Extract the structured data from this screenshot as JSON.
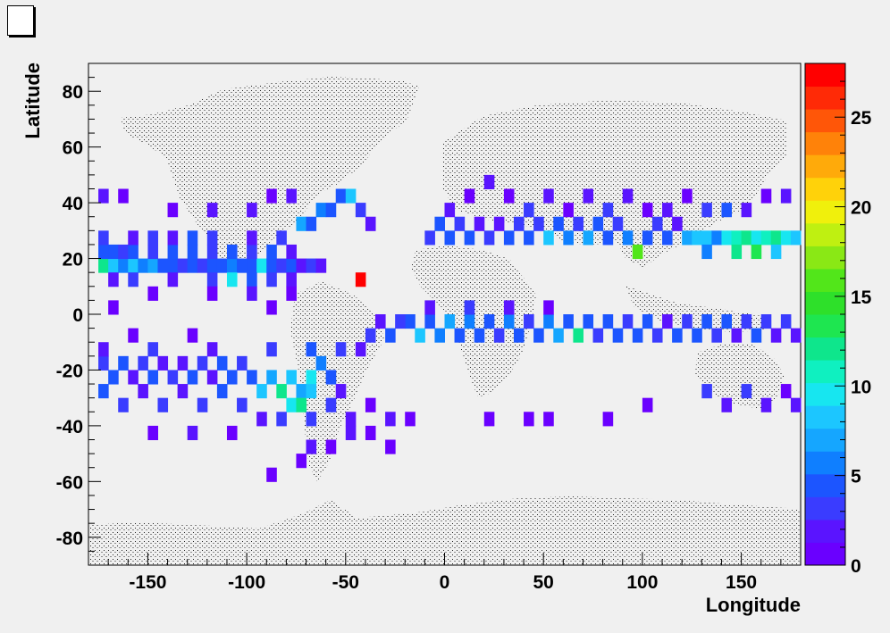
{
  "canvas": {
    "background": "#f0f0f0"
  },
  "chart_data": {
    "type": "heatmap",
    "title": "",
    "xlabel": "Longitude",
    "ylabel": "Latitude",
    "xlim": [
      -180,
      180
    ],
    "ylim": [
      -90,
      90
    ],
    "x_ticks": [
      "-150",
      "-100",
      "-50",
      "0",
      "50",
      "100",
      "150"
    ],
    "y_ticks": [
      "80",
      "60",
      "40",
      "20",
      "0",
      "-20",
      "-40",
      "-60",
      "-80"
    ],
    "z_ticks": [
      "25",
      "20",
      "15",
      "10",
      "5",
      "0"
    ],
    "zlim": [
      0,
      28
    ],
    "bin_size_deg": 5,
    "legend": "right-colorbar",
    "grid": false,
    "background_overlay": "world-map",
    "palette": [
      "#6a00ff",
      "#5a14ff",
      "#3a3cff",
      "#1c55ff",
      "#0f7fff",
      "#15a6ff",
      "#1cc6ff",
      "#17e6f0",
      "#0ff0c0",
      "#0ee68c",
      "#1ee650",
      "#2ee02a",
      "#52e61a",
      "#8ae815",
      "#bff011",
      "#f0f00c",
      "#ffd20a",
      "#ffaa0a",
      "#ff8209",
      "#ff5608",
      "#ff2a06",
      "#ff0000"
    ],
    "cells": [
      {
        "lon": -45,
        "lat": 10,
        "v": 28
      },
      {
        "lon": -175,
        "lat": 15,
        "v": 12
      },
      {
        "lon": -170,
        "lat": 15,
        "v": 9
      },
      {
        "lon": -165,
        "lat": 15,
        "v": 6
      },
      {
        "lon": -160,
        "lat": 15,
        "v": 8
      },
      {
        "lon": -155,
        "lat": 15,
        "v": 6
      },
      {
        "lon": -150,
        "lat": 15,
        "v": 7
      },
      {
        "lon": -145,
        "lat": 15,
        "v": 5
      },
      {
        "lon": -140,
        "lat": 15,
        "v": 4
      },
      {
        "lon": -135,
        "lat": 15,
        "v": 3
      },
      {
        "lon": -130,
        "lat": 15,
        "v": 4
      },
      {
        "lon": -125,
        "lat": 15,
        "v": 3
      },
      {
        "lon": -120,
        "lat": 15,
        "v": 5
      },
      {
        "lon": -115,
        "lat": 15,
        "v": 4
      },
      {
        "lon": -110,
        "lat": 15,
        "v": 6
      },
      {
        "lon": -105,
        "lat": 15,
        "v": 4
      },
      {
        "lon": -100,
        "lat": 15,
        "v": 5
      },
      {
        "lon": -95,
        "lat": 15,
        "v": 10
      },
      {
        "lon": -90,
        "lat": 15,
        "v": 5
      },
      {
        "lon": -85,
        "lat": 15,
        "v": 3
      },
      {
        "lon": -80,
        "lat": 15,
        "v": 4
      },
      {
        "lon": -75,
        "lat": 15,
        "v": 2
      },
      {
        "lon": -70,
        "lat": 15,
        "v": 3
      },
      {
        "lon": -65,
        "lat": 15,
        "v": 2
      },
      {
        "lon": -175,
        "lat": 20,
        "v": 4
      },
      {
        "lon": -170,
        "lat": 20,
        "v": 5
      },
      {
        "lon": -165,
        "lat": 20,
        "v": 3
      },
      {
        "lon": -160,
        "lat": 20,
        "v": 4
      },
      {
        "lon": -150,
        "lat": 20,
        "v": 3
      },
      {
        "lon": -140,
        "lat": 20,
        "v": 5
      },
      {
        "lon": -130,
        "lat": 20,
        "v": 4
      },
      {
        "lon": -120,
        "lat": 20,
        "v": 3
      },
      {
        "lon": -110,
        "lat": 20,
        "v": 4
      },
      {
        "lon": -100,
        "lat": 20,
        "v": 3
      },
      {
        "lon": -90,
        "lat": 20,
        "v": 4
      },
      {
        "lon": -80,
        "lat": 20,
        "v": 2
      },
      {
        "lon": -170,
        "lat": 10,
        "v": 2
      },
      {
        "lon": -160,
        "lat": 10,
        "v": 3
      },
      {
        "lon": -140,
        "lat": 10,
        "v": 2
      },
      {
        "lon": -120,
        "lat": 10,
        "v": 3
      },
      {
        "lon": -110,
        "lat": 10,
        "v": 10
      },
      {
        "lon": -100,
        "lat": 10,
        "v": 4
      },
      {
        "lon": -90,
        "lat": 10,
        "v": 3
      },
      {
        "lon": -80,
        "lat": 10,
        "v": 2
      },
      {
        "lon": -175,
        "lat": 25,
        "v": 3
      },
      {
        "lon": -160,
        "lat": 25,
        "v": 2
      },
      {
        "lon": -150,
        "lat": 25,
        "v": 3
      },
      {
        "lon": -140,
        "lat": 25,
        "v": 2
      },
      {
        "lon": -130,
        "lat": 25,
        "v": 4
      },
      {
        "lon": -120,
        "lat": 25,
        "v": 3
      },
      {
        "lon": -100,
        "lat": 25,
        "v": 2
      },
      {
        "lon": -85,
        "lat": 25,
        "v": 3
      },
      {
        "lon": -75,
        "lat": 30,
        "v": 7
      },
      {
        "lon": -70,
        "lat": 30,
        "v": 5
      },
      {
        "lon": -65,
        "lat": 35,
        "v": 6
      },
      {
        "lon": -60,
        "lat": 35,
        "v": 4
      },
      {
        "lon": -55,
        "lat": 40,
        "v": 5
      },
      {
        "lon": -50,
        "lat": 40,
        "v": 8
      },
      {
        "lon": -45,
        "lat": 35,
        "v": 3
      },
      {
        "lon": -40,
        "lat": 30,
        "v": 2
      },
      {
        "lon": -175,
        "lat": 40,
        "v": 2
      },
      {
        "lon": -165,
        "lat": 40,
        "v": 1
      },
      {
        "lon": -140,
        "lat": 35,
        "v": 1
      },
      {
        "lon": -120,
        "lat": 35,
        "v": 2
      },
      {
        "lon": -100,
        "lat": 35,
        "v": 2
      },
      {
        "lon": -90,
        "lat": 40,
        "v": 1
      },
      {
        "lon": -80,
        "lat": 40,
        "v": 2
      },
      {
        "lon": -10,
        "lat": 25,
        "v": 3
      },
      {
        "lon": -5,
        "lat": 30,
        "v": 4
      },
      {
        "lon": 0,
        "lat": 25,
        "v": 5
      },
      {
        "lon": 5,
        "lat": 30,
        "v": 3
      },
      {
        "lon": 10,
        "lat": 25,
        "v": 4
      },
      {
        "lon": 15,
        "lat": 30,
        "v": 2
      },
      {
        "lon": 20,
        "lat": 25,
        "v": 3
      },
      {
        "lon": 25,
        "lat": 30,
        "v": 2
      },
      {
        "lon": 30,
        "lat": 25,
        "v": 4
      },
      {
        "lon": 35,
        "lat": 30,
        "v": 3
      },
      {
        "lon": 40,
        "lat": 25,
        "v": 5
      },
      {
        "lon": 45,
        "lat": 30,
        "v": 3
      },
      {
        "lon": 50,
        "lat": 25,
        "v": 8
      },
      {
        "lon": 55,
        "lat": 30,
        "v": 4
      },
      {
        "lon": 60,
        "lat": 25,
        "v": 6
      },
      {
        "lon": 65,
        "lat": 30,
        "v": 3
      },
      {
        "lon": 70,
        "lat": 25,
        "v": 7
      },
      {
        "lon": 75,
        "lat": 30,
        "v": 4
      },
      {
        "lon": 80,
        "lat": 25,
        "v": 5
      },
      {
        "lon": 85,
        "lat": 30,
        "v": 3
      },
      {
        "lon": 90,
        "lat": 25,
        "v": 6
      },
      {
        "lon": 95,
        "lat": 20,
        "v": 16
      },
      {
        "lon": 100,
        "lat": 25,
        "v": 5
      },
      {
        "lon": 105,
        "lat": 30,
        "v": 3
      },
      {
        "lon": 110,
        "lat": 25,
        "v": 4
      },
      {
        "lon": 115,
        "lat": 30,
        "v": 2
      },
      {
        "lon": 120,
        "lat": 25,
        "v": 7
      },
      {
        "lon": 125,
        "lat": 25,
        "v": 8
      },
      {
        "lon": 130,
        "lat": 25,
        "v": 9
      },
      {
        "lon": 135,
        "lat": 25,
        "v": 6
      },
      {
        "lon": 140,
        "lat": 25,
        "v": 10
      },
      {
        "lon": 145,
        "lat": 25,
        "v": 11
      },
      {
        "lon": 150,
        "lat": 25,
        "v": 12
      },
      {
        "lon": 155,
        "lat": 25,
        "v": 10
      },
      {
        "lon": 160,
        "lat": 25,
        "v": 11
      },
      {
        "lon": 165,
        "lat": 25,
        "v": 12
      },
      {
        "lon": 170,
        "lat": 25,
        "v": 10
      },
      {
        "lon": 175,
        "lat": 25,
        "v": 8
      },
      {
        "lon": 145,
        "lat": 20,
        "v": 13
      },
      {
        "lon": 155,
        "lat": 20,
        "v": 14
      },
      {
        "lon": 165,
        "lat": 20,
        "v": 9
      },
      {
        "lon": 130,
        "lat": 20,
        "v": 6
      },
      {
        "lon": 0,
        "lat": 35,
        "v": 2
      },
      {
        "lon": 10,
        "lat": 40,
        "v": 1
      },
      {
        "lon": 20,
        "lat": 45,
        "v": 2
      },
      {
        "lon": 30,
        "lat": 40,
        "v": 1
      },
      {
        "lon": 40,
        "lat": 35,
        "v": 3
      },
      {
        "lon": 50,
        "lat": 40,
        "v": 2
      },
      {
        "lon": 60,
        "lat": 35,
        "v": 1
      },
      {
        "lon": 70,
        "lat": 40,
        "v": 2
      },
      {
        "lon": 80,
        "lat": 35,
        "v": 3
      },
      {
        "lon": 90,
        "lat": 40,
        "v": 2
      },
      {
        "lon": 100,
        "lat": 35,
        "v": 1
      },
      {
        "lon": 110,
        "lat": 35,
        "v": 2
      },
      {
        "lon": 120,
        "lat": 40,
        "v": 1
      },
      {
        "lon": 130,
        "lat": 35,
        "v": 3
      },
      {
        "lon": 140,
        "lat": 35,
        "v": 4
      },
      {
        "lon": 150,
        "lat": 35,
        "v": 2
      },
      {
        "lon": 160,
        "lat": 40,
        "v": 1
      },
      {
        "lon": 170,
        "lat": 40,
        "v": 2
      },
      {
        "lon": -20,
        "lat": -5,
        "v": 4
      },
      {
        "lon": -15,
        "lat": -10,
        "v": 8
      },
      {
        "lon": -10,
        "lat": -5,
        "v": 5
      },
      {
        "lon": -5,
        "lat": -10,
        "v": 6
      },
      {
        "lon": 0,
        "lat": -5,
        "v": 7
      },
      {
        "lon": 5,
        "lat": -10,
        "v": 5
      },
      {
        "lon": 10,
        "lat": -5,
        "v": 6
      },
      {
        "lon": 15,
        "lat": -10,
        "v": 4
      },
      {
        "lon": 20,
        "lat": -5,
        "v": 5
      },
      {
        "lon": 25,
        "lat": -10,
        "v": 3
      },
      {
        "lon": 30,
        "lat": -5,
        "v": 6
      },
      {
        "lon": 35,
        "lat": -10,
        "v": 4
      },
      {
        "lon": 40,
        "lat": -5,
        "v": 3
      },
      {
        "lon": 45,
        "lat": -10,
        "v": 5
      },
      {
        "lon": 50,
        "lat": -5,
        "v": 6
      },
      {
        "lon": 55,
        "lat": -10,
        "v": 7
      },
      {
        "lon": 60,
        "lat": -5,
        "v": 5
      },
      {
        "lon": 65,
        "lat": -10,
        "v": 12
      },
      {
        "lon": 70,
        "lat": -5,
        "v": 4
      },
      {
        "lon": 75,
        "lat": -10,
        "v": 3
      },
      {
        "lon": 80,
        "lat": -5,
        "v": 5
      },
      {
        "lon": 85,
        "lat": -10,
        "v": 4
      },
      {
        "lon": 90,
        "lat": -5,
        "v": 3
      },
      {
        "lon": 95,
        "lat": -10,
        "v": 5
      },
      {
        "lon": 100,
        "lat": -5,
        "v": 4
      },
      {
        "lon": 105,
        "lat": -10,
        "v": 3
      },
      {
        "lon": 110,
        "lat": -5,
        "v": 2
      },
      {
        "lon": 115,
        "lat": -10,
        "v": 4
      },
      {
        "lon": 120,
        "lat": -5,
        "v": 3
      },
      {
        "lon": 125,
        "lat": -10,
        "v": 5
      },
      {
        "lon": 130,
        "lat": -5,
        "v": 4
      },
      {
        "lon": 135,
        "lat": -10,
        "v": 3
      },
      {
        "lon": 140,
        "lat": -5,
        "v": 4
      },
      {
        "lon": 145,
        "lat": -10,
        "v": 2
      },
      {
        "lon": 150,
        "lat": -5,
        "v": 3
      },
      {
        "lon": 155,
        "lat": -10,
        "v": 4
      },
      {
        "lon": 160,
        "lat": -5,
        "v": 3
      },
      {
        "lon": 165,
        "lat": -10,
        "v": 2
      },
      {
        "lon": 170,
        "lat": -5,
        "v": 3
      },
      {
        "lon": 175,
        "lat": -10,
        "v": 2
      },
      {
        "lon": -10,
        "lat": 0,
        "v": 2
      },
      {
        "lon": 10,
        "lat": 0,
        "v": 3
      },
      {
        "lon": 30,
        "lat": 0,
        "v": 2
      },
      {
        "lon": 50,
        "lat": 0,
        "v": 1
      },
      {
        "lon": -40,
        "lat": -10,
        "v": 3
      },
      {
        "lon": -35,
        "lat": -5,
        "v": 2
      },
      {
        "lon": -30,
        "lat": -10,
        "v": 4
      },
      {
        "lon": -25,
        "lat": -5,
        "v": 3
      },
      {
        "lon": -175,
        "lat": -20,
        "v": 3
      },
      {
        "lon": -170,
        "lat": -25,
        "v": 5
      },
      {
        "lon": -165,
        "lat": -20,
        "v": 4
      },
      {
        "lon": -160,
        "lat": -25,
        "v": 2
      },
      {
        "lon": -155,
        "lat": -20,
        "v": 3
      },
      {
        "lon": -150,
        "lat": -25,
        "v": 4
      },
      {
        "lon": -145,
        "lat": -20,
        "v": 2
      },
      {
        "lon": -140,
        "lat": -25,
        "v": 3
      },
      {
        "lon": -135,
        "lat": -20,
        "v": 2
      },
      {
        "lon": -130,
        "lat": -25,
        "v": 4
      },
      {
        "lon": -125,
        "lat": -20,
        "v": 3
      },
      {
        "lon": -120,
        "lat": -25,
        "v": 2
      },
      {
        "lon": -115,
        "lat": -20,
        "v": 4
      },
      {
        "lon": -110,
        "lat": -25,
        "v": 5
      },
      {
        "lon": -105,
        "lat": -20,
        "v": 3
      },
      {
        "lon": -100,
        "lat": -25,
        "v": 4
      },
      {
        "lon": -95,
        "lat": -30,
        "v": 8
      },
      {
        "lon": -90,
        "lat": -25,
        "v": 7
      },
      {
        "lon": -85,
        "lat": -30,
        "v": 12
      },
      {
        "lon": -80,
        "lat": -25,
        "v": 9
      },
      {
        "lon": -75,
        "lat": -30,
        "v": 7
      },
      {
        "lon": -70,
        "lat": -25,
        "v": 10
      },
      {
        "lon": -65,
        "lat": -20,
        "v": 6
      },
      {
        "lon": -60,
        "lat": -25,
        "v": 4
      },
      {
        "lon": -80,
        "lat": -35,
        "v": 10
      },
      {
        "lon": -75,
        "lat": -35,
        "v": 12
      },
      {
        "lon": -70,
        "lat": -30,
        "v": 8
      },
      {
        "lon": -70,
        "lat": -40,
        "v": 3
      },
      {
        "lon": -175,
        "lat": -30,
        "v": 4
      },
      {
        "lon": -165,
        "lat": -35,
        "v": 3
      },
      {
        "lon": -155,
        "lat": -30,
        "v": 2
      },
      {
        "lon": -145,
        "lat": -35,
        "v": 3
      },
      {
        "lon": -135,
        "lat": -30,
        "v": 2
      },
      {
        "lon": -125,
        "lat": -35,
        "v": 3
      },
      {
        "lon": -115,
        "lat": -30,
        "v": 4
      },
      {
        "lon": -105,
        "lat": -35,
        "v": 3
      },
      {
        "lon": -95,
        "lat": -40,
        "v": 2
      },
      {
        "lon": -85,
        "lat": -40,
        "v": 3
      },
      {
        "lon": -60,
        "lat": -35,
        "v": 3
      },
      {
        "lon": -55,
        "lat": -30,
        "v": 2
      },
      {
        "lon": -50,
        "lat": -40,
        "v": 2
      },
      {
        "lon": -40,
        "lat": -35,
        "v": 1
      },
      {
        "lon": -30,
        "lat": -40,
        "v": 2
      },
      {
        "lon": -20,
        "lat": -40,
        "v": 1
      },
      {
        "lon": -150,
        "lat": -45,
        "v": 1
      },
      {
        "lon": -130,
        "lat": -45,
        "v": 2
      },
      {
        "lon": -110,
        "lat": -45,
        "v": 1
      },
      {
        "lon": -70,
        "lat": -50,
        "v": 2
      },
      {
        "lon": -60,
        "lat": -50,
        "v": 1
      },
      {
        "lon": -50,
        "lat": -45,
        "v": 2
      },
      {
        "lon": -40,
        "lat": -45,
        "v": 1
      },
      {
        "lon": -30,
        "lat": -50,
        "v": 1
      },
      {
        "lon": -90,
        "lat": -60,
        "v": 1
      },
      {
        "lon": -75,
        "lat": -55,
        "v": 1
      },
      {
        "lon": 20,
        "lat": -40,
        "v": 1
      },
      {
        "lon": 40,
        "lat": -40,
        "v": 1
      },
      {
        "lon": 50,
        "lat": -40,
        "v": 1
      },
      {
        "lon": 80,
        "lat": -40,
        "v": 1
      },
      {
        "lon": 100,
        "lat": -35,
        "v": 1
      },
      {
        "lon": 130,
        "lat": -30,
        "v": 3
      },
      {
        "lon": 140,
        "lat": -35,
        "v": 2
      },
      {
        "lon": 150,
        "lat": -30,
        "v": 3
      },
      {
        "lon": 160,
        "lat": -35,
        "v": 2
      },
      {
        "lon": 170,
        "lat": -30,
        "v": 1
      },
      {
        "lon": 175,
        "lat": -35,
        "v": 2
      },
      {
        "lon": -170,
        "lat": 0,
        "v": 1
      },
      {
        "lon": -150,
        "lat": 5,
        "v": 1
      },
      {
        "lon": -120,
        "lat": 5,
        "v": 1
      },
      {
        "lon": -100,
        "lat": 5,
        "v": 2
      },
      {
        "lon": -90,
        "lat": 0,
        "v": 1
      },
      {
        "lon": -80,
        "lat": 5,
        "v": 1
      },
      {
        "lon": -130,
        "lat": -10,
        "v": 1
      },
      {
        "lon": -160,
        "lat": -10,
        "v": 1
      },
      {
        "lon": -175,
        "lat": -15,
        "v": 2
      },
      {
        "lon": -150,
        "lat": -15,
        "v": 3
      },
      {
        "lon": -120,
        "lat": -15,
        "v": 2
      },
      {
        "lon": -90,
        "lat": -15,
        "v": 3
      },
      {
        "lon": -70,
        "lat": -15,
        "v": 4
      },
      {
        "lon": -55,
        "lat": -15,
        "v": 3
      },
      {
        "lon": -45,
        "lat": -15,
        "v": 2
      }
    ]
  }
}
